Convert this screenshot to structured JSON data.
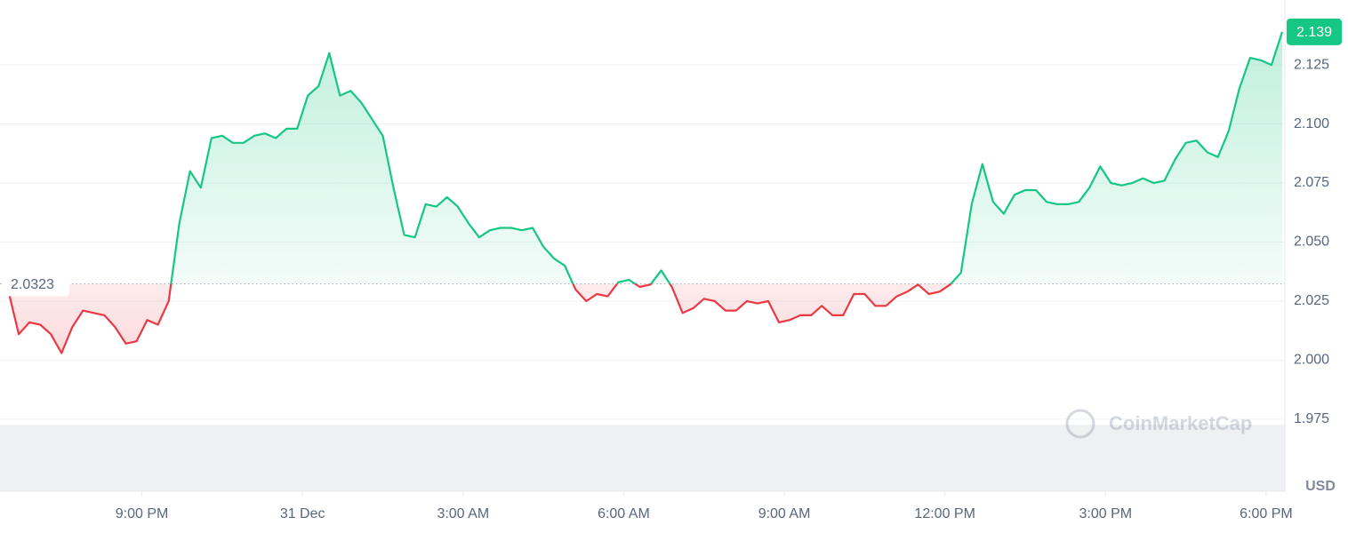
{
  "chart_data": {
    "type": "line",
    "x": [
      18.5,
      18.7,
      18.9,
      19.1,
      19.3,
      19.5,
      19.7,
      19.9,
      20.1,
      20.3,
      20.5,
      20.7,
      20.9,
      21.1,
      21.3,
      21.5,
      21.7,
      21.9,
      22.1,
      22.3,
      22.5,
      22.7,
      22.9,
      23.1,
      23.3,
      23.5,
      23.7,
      23.9,
      24.1,
      24.3,
      24.5,
      24.7,
      24.9,
      25.1,
      25.3,
      25.5,
      25.7,
      25.9,
      26.1,
      26.3,
      26.5,
      26.7,
      26.9,
      27.1,
      27.3,
      27.5,
      27.7,
      27.9,
      28.1,
      28.3,
      28.5,
      28.7,
      28.9,
      29.1,
      29.3,
      29.5,
      29.7,
      29.9,
      30.1,
      30.3,
      30.5,
      30.7,
      30.9,
      31.1,
      31.3,
      31.5,
      31.7,
      31.9,
      32.1,
      32.3,
      32.5,
      32.7,
      32.9,
      33.1,
      33.3,
      33.5,
      33.7,
      33.9,
      34.1,
      34.3,
      34.5,
      34.7,
      34.9,
      35.1,
      35.3,
      35.5,
      35.7,
      35.9,
      36.1,
      36.3,
      36.5,
      36.7,
      36.9,
      37.1,
      37.3,
      37.5,
      37.7,
      37.9,
      38.1,
      38.3,
      38.5,
      38.7,
      38.9,
      39.1,
      39.3,
      39.5,
      39.7,
      39.9,
      40.1,
      40.3,
      40.5,
      40.7,
      40.9,
      41.1,
      41.3,
      41.5,
      41.7,
      41.9,
      42.1,
      42.3
    ],
    "values": [
      2.03,
      2.011,
      2.016,
      2.015,
      2.011,
      2.003,
      2.014,
      2.021,
      2.02,
      2.019,
      2.014,
      2.007,
      2.008,
      2.017,
      2.015,
      2.025,
      2.058,
      2.08,
      2.073,
      2.094,
      2.095,
      2.092,
      2.092,
      2.095,
      2.096,
      2.094,
      2.098,
      2.098,
      2.112,
      2.116,
      2.13,
      2.112,
      2.114,
      2.109,
      2.102,
      2.095,
      2.073,
      2.053,
      2.052,
      2.066,
      2.065,
      2.069,
      2.065,
      2.058,
      2.052,
      2.055,
      2.056,
      2.056,
      2.055,
      2.056,
      2.048,
      2.043,
      2.04,
      2.03,
      2.025,
      2.028,
      2.027,
      2.033,
      2.034,
      2.031,
      2.032,
      2.038,
      2.031,
      2.02,
      2.022,
      2.026,
      2.025,
      2.021,
      2.021,
      2.025,
      2.024,
      2.025,
      2.016,
      2.017,
      2.019,
      2.019,
      2.023,
      2.019,
      2.019,
      2.028,
      2.028,
      2.023,
      2.023,
      2.027,
      2.029,
      2.032,
      2.028,
      2.029,
      2.032,
      2.037,
      2.066,
      2.083,
      2.067,
      2.062,
      2.07,
      2.072,
      2.072,
      2.067,
      2.066,
      2.066,
      2.067,
      2.073,
      2.082,
      2.075,
      2.074,
      2.075,
      2.077,
      2.075,
      2.076,
      2.085,
      2.092,
      2.093,
      2.088,
      2.086,
      2.097,
      2.115,
      2.128,
      2.127,
      2.125,
      2.139
    ],
    "baseline": 2.0323,
    "up_color": "#16c784",
    "down_color": "#ea3943",
    "xlim": [
      18.35,
      42.35
    ],
    "ylim": [
      1.9445,
      2.1506
    ],
    "xticks": [
      {
        "value": 21,
        "label": "9:00 PM"
      },
      {
        "value": 24,
        "label": "31 Dec"
      },
      {
        "value": 27,
        "label": "3:00 AM"
      },
      {
        "value": 30,
        "label": "6:00 AM"
      },
      {
        "value": 33,
        "label": "9:00 AM"
      },
      {
        "value": 36,
        "label": "12:00 PM"
      },
      {
        "value": 39,
        "label": "3:00 PM"
      },
      {
        "value": 42,
        "label": "6:00 PM"
      }
    ],
    "yticks": [
      1.975,
      {
        "value": 2.0,
        "label": "2.000"
      },
      2.025,
      {
        "value": 2.05,
        "label": "2.050"
      },
      2.075,
      {
        "value": 2.1,
        "label": "2.100"
      },
      2.125
    ],
    "grid": true,
    "y_axis_label": "USD",
    "watermark": "CoinMarketCap"
  }
}
